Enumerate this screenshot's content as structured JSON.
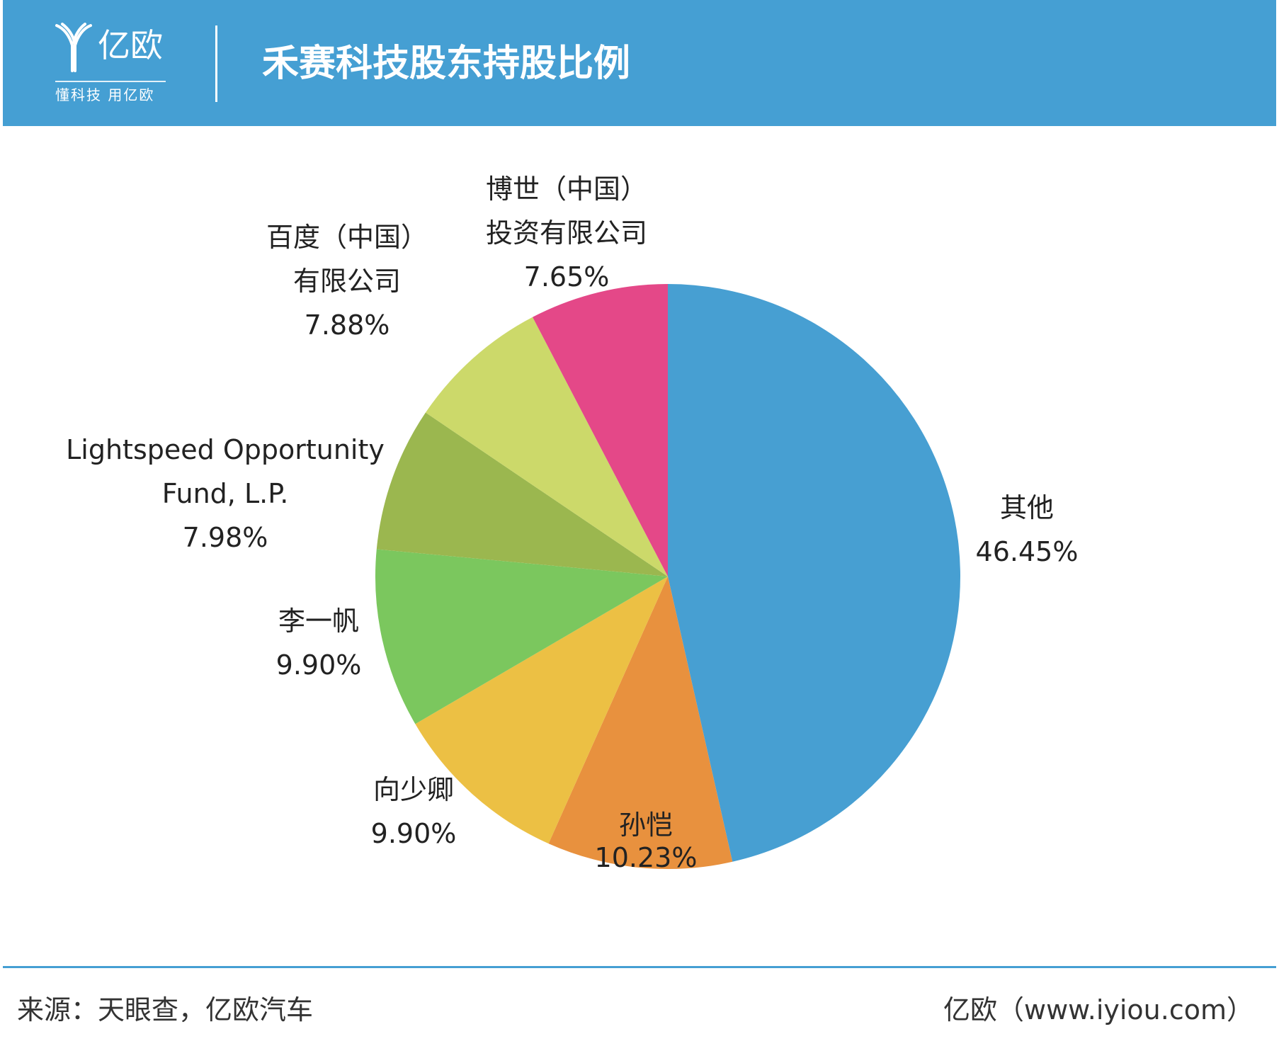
{
  "header": {
    "logo_name": "亿欧",
    "logo_slogan": "懂科技 用亿欧",
    "title": "禾赛科技股东持股比例"
  },
  "colors": {
    "header_bg": "#459fd3",
    "other": "#479fd2",
    "sun_kai": "#e8913e",
    "xiang_shaoqing": "#ecc044",
    "li_yifan": "#7bc75e",
    "lightspeed": "#9bb74f",
    "baidu": "#ccd96a",
    "boshi": "#e44888"
  },
  "chart_data": {
    "type": "pie",
    "start": "12 o'clock",
    "direction": "clockwise",
    "slices": [
      {
        "label_lines": [
          "其他"
        ],
        "value": 46.45,
        "value_label": "46.45%",
        "color": "#479fd2"
      },
      {
        "label_lines": [
          "孙恺"
        ],
        "value": 10.23,
        "value_label": "10.23%",
        "color": "#e8913e"
      },
      {
        "label_lines": [
          "向少卿"
        ],
        "value": 9.9,
        "value_label": "9.90%",
        "color": "#ecc044"
      },
      {
        "label_lines": [
          "李一帆"
        ],
        "value": 9.9,
        "value_label": "9.90%",
        "color": "#7bc75e"
      },
      {
        "label_lines": [
          "Lightspeed Opportunity",
          "Fund, L.P."
        ],
        "value": 7.98,
        "value_label": "7.98%",
        "color": "#9bb74f"
      },
      {
        "label_lines": [
          "百度（中国）",
          "有限公司"
        ],
        "value": 7.88,
        "value_label": "7.88%",
        "color": "#ccd96a"
      },
      {
        "label_lines": [
          "博世（中国）",
          "投资有限公司"
        ],
        "value": 7.65,
        "value_label": "7.65%",
        "color": "#e44888"
      }
    ]
  },
  "footer": {
    "source": "来源：天眼查，亿欧汽车",
    "brand": "亿欧（www.iyiou.com）"
  }
}
